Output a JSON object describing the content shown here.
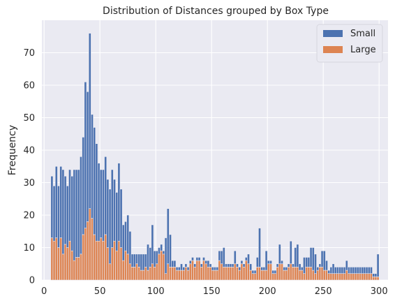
{
  "chart_data": {
    "type": "bar",
    "stacked": true,
    "title": "Distribution of Distances grouped by Box Type",
    "xlabel": "",
    "ylabel": "Frequency",
    "xlim": [
      -2,
      308
    ],
    "ylim": [
      0,
      80
    ],
    "xticks": [
      0,
      50,
      100,
      150,
      200,
      250,
      300
    ],
    "yticks": [
      0,
      10,
      20,
      30,
      40,
      50,
      60,
      70
    ],
    "grid": true,
    "legend_position": "top-right",
    "bin_start": 6,
    "bin_width": 2,
    "x": [
      7,
      9,
      11,
      13,
      15,
      17,
      19,
      21,
      23,
      25,
      27,
      29,
      31,
      33,
      35,
      37,
      39,
      41,
      43,
      45,
      47,
      49,
      51,
      53,
      55,
      57,
      59,
      61,
      63,
      65,
      67,
      69,
      71,
      73,
      75,
      77,
      79,
      81,
      83,
      85,
      87,
      89,
      91,
      93,
      95,
      97,
      99,
      101,
      103,
      105,
      107,
      109,
      111,
      113,
      115,
      117,
      119,
      121,
      123,
      125,
      127,
      129,
      131,
      133,
      135,
      137,
      139,
      141,
      143,
      145,
      147,
      149,
      151,
      153,
      155,
      157,
      159,
      161,
      163,
      165,
      167,
      169,
      171,
      173,
      175,
      177,
      179,
      181,
      183,
      185,
      187,
      189,
      191,
      193,
      195,
      197,
      199,
      201,
      203,
      205,
      207,
      209,
      211,
      213,
      215,
      217,
      219,
      221,
      223,
      225,
      227,
      229,
      231,
      233,
      235,
      237,
      239,
      241,
      243,
      245,
      247,
      249,
      251,
      253,
      255,
      257,
      259,
      261,
      263,
      265,
      267,
      269,
      271,
      273,
      275,
      277,
      279,
      281,
      283,
      285,
      287,
      289,
      291,
      293,
      295,
      297,
      299
    ],
    "series": [
      {
        "name": "Large",
        "color": "#dd8452",
        "values": [
          13,
          12,
          13,
          10,
          13,
          8,
          11,
          10,
          12,
          9,
          6,
          7,
          7,
          8,
          14,
          16,
          18,
          22,
          19,
          14,
          12,
          12,
          13,
          12,
          14,
          10,
          5,
          10,
          12,
          9,
          12,
          10,
          6,
          9,
          8,
          5,
          4,
          4,
          5,
          4,
          3,
          3,
          4,
          3,
          4,
          5,
          4,
          5,
          8,
          9,
          8,
          2,
          5,
          4,
          4,
          4,
          3,
          3,
          3,
          3,
          4,
          3,
          5,
          6,
          4,
          6,
          6,
          4,
          6,
          5,
          4,
          4,
          3,
          3,
          3,
          6,
          5,
          4,
          4,
          4,
          4,
          4,
          5,
          4,
          3,
          5,
          4,
          6,
          5,
          3,
          2,
          2,
          4,
          4,
          3,
          3,
          3,
          5,
          5,
          2,
          2,
          4,
          5,
          5,
          3,
          3,
          4,
          5,
          4,
          4,
          4,
          3,
          3,
          2,
          4,
          4,
          4,
          3,
          2,
          3,
          4,
          4,
          3,
          3,
          2,
          2,
          2,
          2,
          2,
          2,
          2,
          2,
          3,
          2,
          2,
          2,
          2,
          2,
          2,
          2,
          2,
          2,
          2,
          2,
          1,
          1,
          1
        ]
      },
      {
        "name": "Small",
        "color": "#4c72b0",
        "values": [
          19,
          17,
          22,
          19,
          22,
          26,
          21,
          19,
          22,
          23,
          28,
          27,
          27,
          30,
          30,
          45,
          40,
          54,
          32,
          33,
          30,
          24,
          21,
          22,
          24,
          21,
          23,
          24,
          19,
          18,
          24,
          18,
          11,
          9,
          12,
          10,
          4,
          4,
          3,
          4,
          5,
          5,
          4,
          8,
          6,
          12,
          5,
          4,
          2,
          2,
          1,
          11,
          17,
          10,
          2,
          2,
          1,
          1,
          2,
          1,
          1,
          1,
          1,
          1,
          1,
          1,
          1,
          1,
          1,
          1,
          2,
          1,
          1,
          1,
          1,
          3,
          4,
          6,
          1,
          1,
          1,
          1,
          4,
          1,
          1,
          1,
          1,
          1,
          3,
          2,
          1,
          1,
          3,
          12,
          1,
          1,
          6,
          1,
          1,
          1,
          1,
          1,
          6,
          1,
          1,
          1,
          1,
          7,
          1,
          6,
          7,
          2,
          1,
          5,
          3,
          3,
          6,
          7,
          6,
          1,
          1,
          5,
          6,
          3,
          1,
          2,
          3,
          2,
          2,
          2,
          2,
          2,
          3,
          2,
          2,
          2,
          2,
          2,
          2,
          2,
          2,
          2,
          2,
          2,
          1,
          1,
          7
        ]
      }
    ],
    "legend": [
      "Small",
      "Large"
    ]
  }
}
